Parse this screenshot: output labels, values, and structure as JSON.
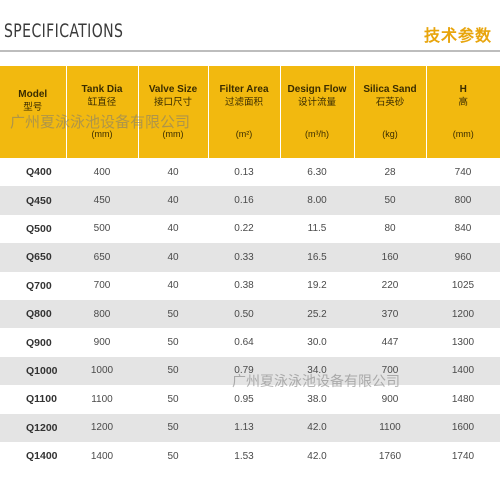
{
  "header": {
    "title_en": "SPECIFICATIONS",
    "title_cn": "技术参数"
  },
  "table": {
    "columns": [
      {
        "en": "Model",
        "cn": "型号",
        "unit": ""
      },
      {
        "en": "Tank Dia",
        "cn": "缸直径",
        "unit": "(mm)"
      },
      {
        "en": "Valve Size",
        "cn": "接口尺寸",
        "unit": "(mm)"
      },
      {
        "en": "Filter Area",
        "cn": "过滤面积",
        "unit": "(m²)"
      },
      {
        "en": "Design Flow",
        "cn": "设计流量",
        "unit": "(m³/h)"
      },
      {
        "en": "Silica Sand",
        "cn": "石英砂",
        "unit": "(kg)"
      },
      {
        "en": "H",
        "cn": "高",
        "unit": "(mm)"
      }
    ],
    "rows": [
      [
        "Q400",
        "400",
        "40",
        "0.13",
        "6.30",
        "28",
        "740"
      ],
      [
        "Q450",
        "450",
        "40",
        "0.16",
        "8.00",
        "50",
        "800"
      ],
      [
        "Q500",
        "500",
        "40",
        "0.22",
        "11.5",
        "80",
        "840"
      ],
      [
        "Q650",
        "650",
        "40",
        "0.33",
        "16.5",
        "160",
        "960"
      ],
      [
        "Q700",
        "700",
        "40",
        "0.38",
        "19.2",
        "220",
        "1025"
      ],
      [
        "Q800",
        "800",
        "50",
        "0.50",
        "25.2",
        "370",
        "1200"
      ],
      [
        "Q900",
        "900",
        "50",
        "0.64",
        "30.0",
        "447",
        "1300"
      ],
      [
        "Q1000",
        "1000",
        "50",
        "0.79",
        "34.0",
        "700",
        "1400"
      ],
      [
        "Q1100",
        "1100",
        "50",
        "0.95",
        "38.0",
        "900",
        "1480"
      ],
      [
        "Q1200",
        "1200",
        "50",
        "1.13",
        "42.0",
        "1100",
        "1600"
      ],
      [
        "Q1400",
        "1400",
        "50",
        "1.53",
        "42.0",
        "1760",
        "1740"
      ]
    ]
  },
  "watermarks": [
    "广州夏泳泳池设备有限公司",
    "广州夏泳泳池设备有限公司"
  ],
  "colors": {
    "header_bg": "#f2b90f",
    "title_cn": "#e8a50d",
    "stripe": "#e4e4e4"
  }
}
